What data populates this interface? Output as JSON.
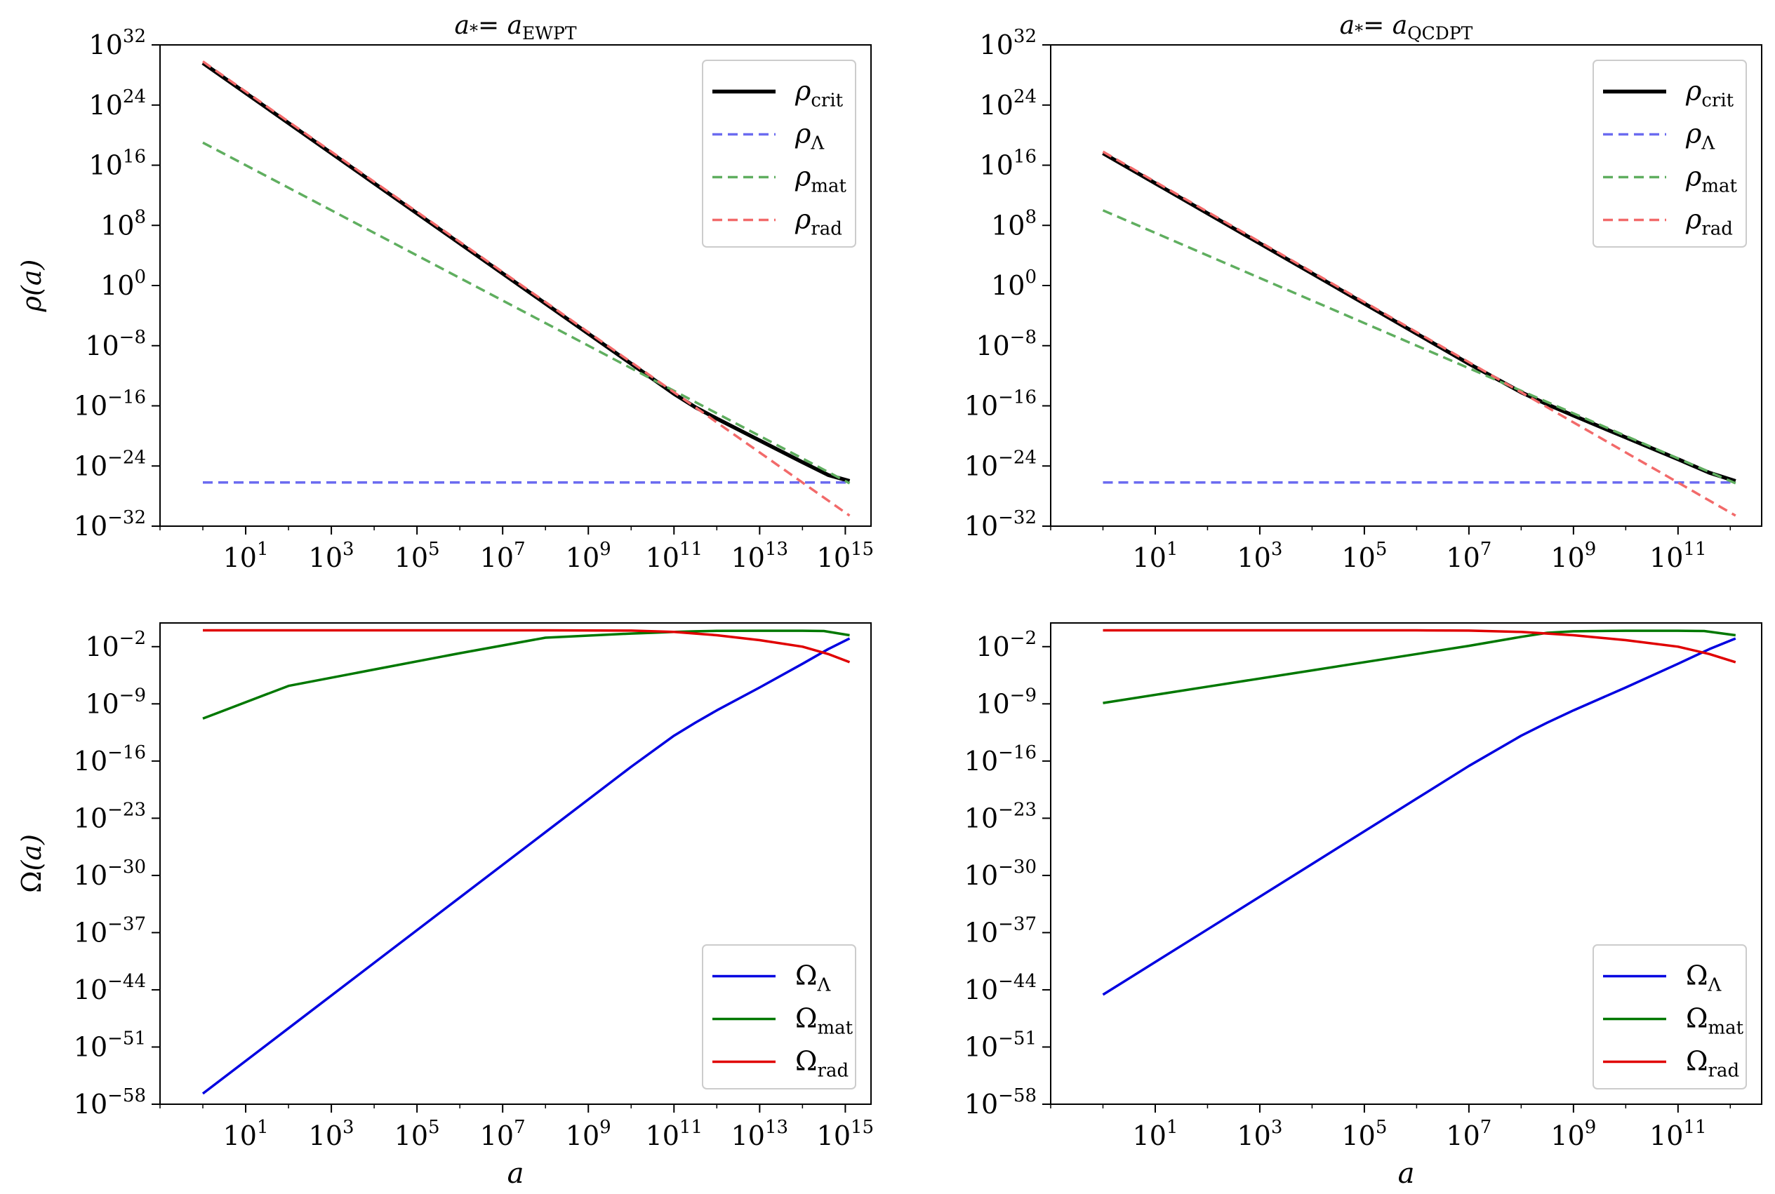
{
  "figure": {
    "panels": [
      {
        "title_main": "a",
        "title_sub": "EWPT",
        "ylabel_main": "ρ",
        "ylabel_arg": "(a)",
        "xlabel": ""
      },
      {
        "title_main": "a",
        "title_sub": "QCDPT",
        "ylabel_main": "",
        "ylabel_arg": "",
        "xlabel": ""
      },
      {
        "title_main": "",
        "title_sub": "",
        "ylabel_main": "Ω",
        "ylabel_arg": "(a)",
        "xlabel": "a"
      },
      {
        "title_main": "",
        "title_sub": "",
        "ylabel_main": "",
        "ylabel_arg": "",
        "xlabel": "a"
      }
    ],
    "title_prefix": "a",
    "title_star": "*",
    "title_equals": "="
  },
  "chart_data": [
    {
      "type": "line",
      "panel": "top-left",
      "title": "a* = a_EWPT",
      "xlabel": "",
      "ylabel": "ρ(a)",
      "xscale": "log",
      "yscale": "log",
      "xlim_log10": [
        -1.0,
        15.6
      ],
      "ylim_log10": [
        -32,
        32
      ],
      "xticks_log10": [
        1,
        3,
        5,
        7,
        9,
        11,
        13,
        15
      ],
      "yticks_log10": [
        32,
        24,
        16,
        8,
        0,
        -8,
        -16,
        -24,
        -32
      ],
      "legend": "upper-right",
      "series": [
        {
          "name": "ρ",
          "sub": "crit",
          "color": "#000000",
          "dash": "solid",
          "width": 5.5,
          "points": [
            [
              0,
              29.6
            ],
            [
              2,
              21.6
            ],
            [
              4,
              13.6
            ],
            [
              6,
              5.6
            ],
            [
              8,
              -2.4
            ],
            [
              10,
              -10.4
            ],
            [
              11,
              -14.4
            ],
            [
              11.5,
              -16.2
            ],
            [
              12,
              -17.7
            ],
            [
              13,
              -20.6
            ],
            [
              14,
              -23.5
            ],
            [
              14.6,
              -25.2
            ],
            [
              15.1,
              -26.0
            ]
          ]
        },
        {
          "name": "ρ",
          "sub": "Λ",
          "color": "#6b6bf0",
          "dash": "dashed",
          "width": 3.5,
          "points": [
            [
              0,
              -26.2
            ],
            [
              15.1,
              -26.2
            ]
          ]
        },
        {
          "name": "ρ",
          "sub": "mat",
          "color": "#5fae5f",
          "dash": "dashed",
          "width": 3.5,
          "points": [
            [
              0,
              19
            ],
            [
              15.1,
              -26.3
            ]
          ]
        },
        {
          "name": "ρ",
          "sub": "rad",
          "color": "#f26a6a",
          "dash": "dashed",
          "width": 3.5,
          "points": [
            [
              0,
              29.8
            ],
            [
              15.1,
              -30.6
            ]
          ]
        }
      ]
    },
    {
      "type": "line",
      "panel": "top-right",
      "title": "a* = a_QCDPT",
      "xlabel": "",
      "ylabel": "",
      "xscale": "log",
      "yscale": "log",
      "xlim_log10": [
        -1.0,
        12.6
      ],
      "ylim_log10": [
        -32,
        32
      ],
      "xticks_log10": [
        1,
        3,
        5,
        7,
        9,
        11
      ],
      "yticks_log10": [
        32,
        24,
        16,
        8,
        0,
        -8,
        -16,
        -24,
        -32
      ],
      "legend": "upper-right",
      "series": [
        {
          "name": "ρ",
          "sub": "crit",
          "color": "#000000",
          "dash": "solid",
          "width": 5.5,
          "points": [
            [
              0,
              17.6
            ],
            [
              2,
              9.6
            ],
            [
              4,
              1.6
            ],
            [
              6,
              -6.4
            ],
            [
              7,
              -10.4
            ],
            [
              8,
              -14.2
            ],
            [
              8.5,
              -15.8
            ],
            [
              9,
              -17.3
            ],
            [
              10,
              -20.2
            ],
            [
              11,
              -23.1
            ],
            [
              11.6,
              -24.9
            ],
            [
              12.1,
              -26.0
            ]
          ]
        },
        {
          "name": "ρ",
          "sub": "Λ",
          "color": "#6b6bf0",
          "dash": "dashed",
          "width": 3.5,
          "points": [
            [
              0,
              -26.2
            ],
            [
              12.1,
              -26.2
            ]
          ]
        },
        {
          "name": "ρ",
          "sub": "mat",
          "color": "#5fae5f",
          "dash": "dashed",
          "width": 3.5,
          "points": [
            [
              0,
              10
            ],
            [
              12.1,
              -26.3
            ]
          ]
        },
        {
          "name": "ρ",
          "sub": "rad",
          "color": "#f26a6a",
          "dash": "dashed",
          "width": 3.5,
          "points": [
            [
              0,
              17.8
            ],
            [
              12.1,
              -30.6
            ]
          ]
        }
      ]
    },
    {
      "type": "line",
      "panel": "bottom-left",
      "title": "",
      "xlabel": "a",
      "ylabel": "Ω(a)",
      "xscale": "log",
      "yscale": "log",
      "xlim_log10": [
        -1.0,
        15.6
      ],
      "ylim_log10": [
        -58,
        0.9
      ],
      "xticks_log10": [
        1,
        3,
        5,
        7,
        9,
        11,
        13,
        15
      ],
      "yticks_log10": [
        -2,
        -9,
        -16,
        -23,
        -30,
        -37,
        -44,
        -51,
        -58
      ],
      "legend": "lower-right",
      "series": [
        {
          "name": "Ω",
          "sub": "Λ",
          "color": "#0000e0",
          "dash": "solid",
          "width": 3.5,
          "points": [
            [
              0,
              -56.7
            ],
            [
              2,
              -48.7
            ],
            [
              4,
              -40.7
            ],
            [
              6,
              -32.7
            ],
            [
              8,
              -24.7
            ],
            [
              10,
              -16.7
            ],
            [
              11,
              -12.9
            ],
            [
              11.5,
              -11.3
            ],
            [
              12,
              -9.8
            ],
            [
              13,
              -7.0
            ],
            [
              14,
              -4.1
            ],
            [
              14.6,
              -2.3
            ],
            [
              15.1,
              -1.0
            ]
          ]
        },
        {
          "name": "Ω",
          "sub": "mat",
          "color": "#007800",
          "dash": "solid",
          "width": 3.5,
          "points": [
            [
              0,
              -10.8
            ],
            [
              2,
              -6.8
            ],
            [
              4,
              -4.8
            ],
            [
              6,
              -2.8
            ],
            [
              8,
              -0.9
            ],
            [
              10,
              -0.4
            ],
            [
              10.5,
              -0.3
            ],
            [
              11,
              -0.2
            ],
            [
              11.5,
              -0.12
            ],
            [
              12,
              -0.07
            ],
            [
              13,
              -0.05
            ],
            [
              14,
              -0.05
            ],
            [
              14.5,
              -0.09
            ],
            [
              15.1,
              -0.6
            ]
          ]
        },
        {
          "name": "Ω",
          "sub": "rad",
          "color": "#e00000",
          "dash": "solid",
          "width": 3.5,
          "points": [
            [
              0,
              0
            ],
            [
              8,
              -0.0
            ],
            [
              10,
              -0.04
            ],
            [
              11,
              -0.2
            ],
            [
              11.5,
              -0.4
            ],
            [
              12,
              -0.6
            ],
            [
              13,
              -1.2
            ],
            [
              14,
              -2.0
            ],
            [
              14.6,
              -2.9
            ],
            [
              15.1,
              -3.9
            ]
          ]
        }
      ]
    },
    {
      "type": "line",
      "panel": "bottom-right",
      "title": "",
      "xlabel": "a",
      "ylabel": "",
      "xscale": "log",
      "yscale": "log",
      "xlim_log10": [
        -1.0,
        12.6
      ],
      "ylim_log10": [
        -58,
        0.9
      ],
      "xticks_log10": [
        1,
        3,
        5,
        7,
        9,
        11
      ],
      "yticks_log10": [
        -2,
        -9,
        -16,
        -23,
        -30,
        -37,
        -44,
        -51,
        -58
      ],
      "legend": "lower-right",
      "series": [
        {
          "name": "Ω",
          "sub": "Λ",
          "color": "#0000e0",
          "dash": "solid",
          "width": 3.5,
          "points": [
            [
              0,
              -44.6
            ],
            [
              2,
              -36.6
            ],
            [
              4,
              -28.6
            ],
            [
              6,
              -20.6
            ],
            [
              7,
              -16.6
            ],
            [
              8,
              -12.9
            ],
            [
              8.5,
              -11.3
            ],
            [
              9,
              -9.8
            ],
            [
              10,
              -7.0
            ],
            [
              11,
              -4.1
            ],
            [
              11.6,
              -2.3
            ],
            [
              12.1,
              -1.0
            ]
          ]
        },
        {
          "name": "Ω",
          "sub": "mat",
          "color": "#007800",
          "dash": "solid",
          "width": 3.5,
          "points": [
            [
              0,
              -8.9
            ],
            [
              2,
              -6.9
            ],
            [
              4,
              -4.9
            ],
            [
              6,
              -2.9
            ],
            [
              7,
              -1.9
            ],
            [
              8,
              -0.8
            ],
            [
              8.5,
              -0.3
            ],
            [
              9,
              -0.12
            ],
            [
              10,
              -0.05
            ],
            [
              11,
              -0.05
            ],
            [
              11.5,
              -0.09
            ],
            [
              12.1,
              -0.6
            ]
          ]
        },
        {
          "name": "Ω",
          "sub": "rad",
          "color": "#e00000",
          "dash": "solid",
          "width": 3.5,
          "points": [
            [
              0,
              0
            ],
            [
              6,
              -0.0
            ],
            [
              7,
              -0.04
            ],
            [
              8,
              -0.2
            ],
            [
              8.5,
              -0.4
            ],
            [
              9,
              -0.6
            ],
            [
              10,
              -1.2
            ],
            [
              11,
              -2.0
            ],
            [
              11.6,
              -2.9
            ],
            [
              12.1,
              -3.9
            ]
          ]
        }
      ]
    }
  ]
}
